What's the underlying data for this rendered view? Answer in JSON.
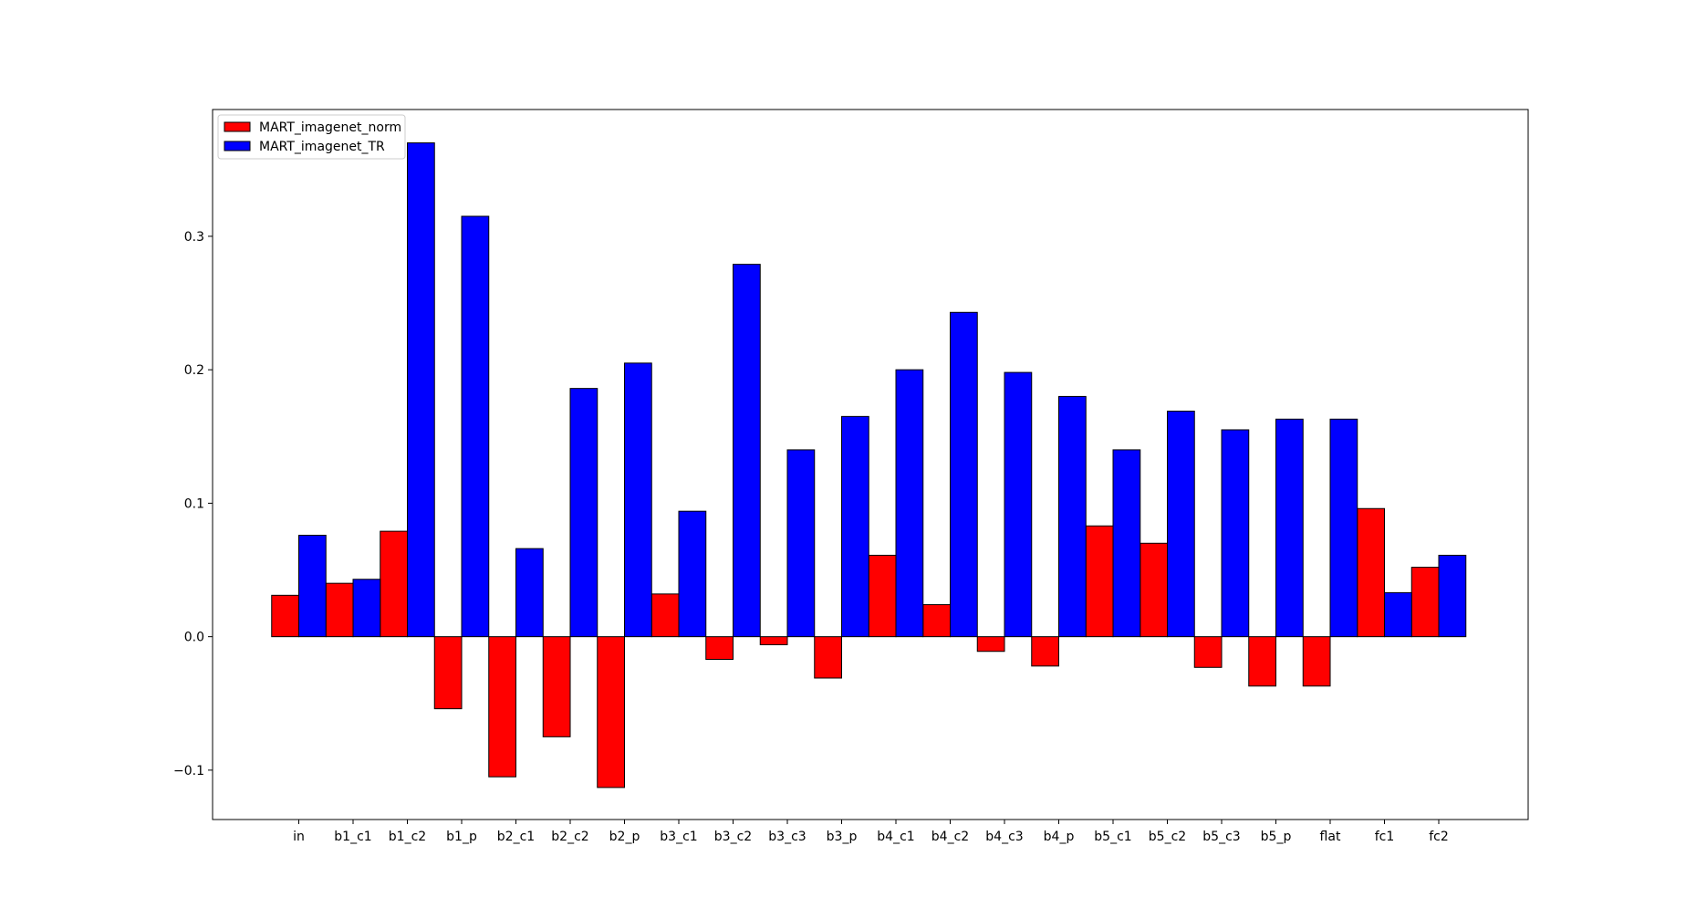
{
  "chart_data": {
    "type": "bar",
    "title": "",
    "xlabel": "",
    "ylabel": "",
    "categories": [
      "in",
      "b1_c1",
      "b1_c2",
      "b1_p",
      "b2_c1",
      "b2_c2",
      "b2_p",
      "b3_c1",
      "b3_c2",
      "b3_c3",
      "b3_p",
      "b4_c1",
      "b4_c2",
      "b4_c3",
      "b4_p",
      "b5_c1",
      "b5_c2",
      "b5_c3",
      "b5_p",
      "flat",
      "fc1",
      "fc2"
    ],
    "series": [
      {
        "name": "MART_imagenet_norm",
        "color": "#ff0000",
        "values": [
          0.031,
          0.04,
          0.079,
          -0.054,
          -0.105,
          -0.075,
          -0.113,
          0.032,
          -0.017,
          -0.006,
          -0.031,
          0.061,
          0.024,
          -0.011,
          -0.022,
          0.083,
          0.07,
          -0.023,
          -0.037,
          -0.037,
          0.096,
          0.052
        ]
      },
      {
        "name": "MART_imagenet_TR",
        "color": "#0000ff",
        "values": [
          0.076,
          0.043,
          0.37,
          0.315,
          0.066,
          0.186,
          0.205,
          0.094,
          0.279,
          0.14,
          0.165,
          0.2,
          0.243,
          0.198,
          0.18,
          0.14,
          0.169,
          0.155,
          0.163,
          0.163,
          0.033,
          0.061
        ]
      }
    ],
    "ylim": [
      -0.137,
      0.395
    ],
    "yticks": [
      -0.1,
      0.0,
      0.1,
      0.2,
      0.3
    ],
    "ytick_labels": [
      "−0.1",
      "0.0",
      "0.1",
      "0.2",
      "0.3"
    ],
    "legend": "top-left",
    "grid": false
  }
}
